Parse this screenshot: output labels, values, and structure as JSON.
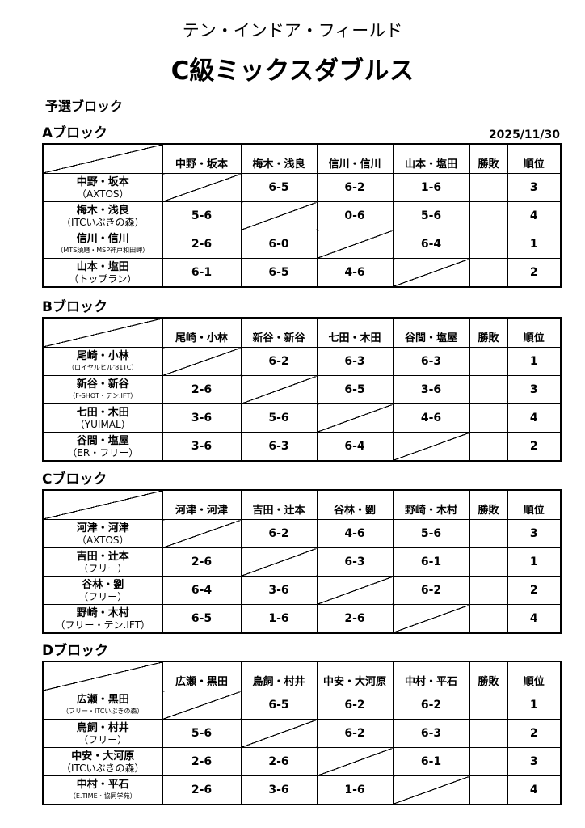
{
  "subtitle": "テン・インドア・フィールド",
  "title": "C級ミックスダブルス",
  "section": "予選ブロック",
  "date": "2025/11/30",
  "col_winloss": "勝敗",
  "col_rank": "順位",
  "blocks": [
    {
      "name": "Aブロック",
      "headers": [
        "中野・坂本",
        "梅木・浅良",
        "信川・信川",
        "山本・塩田"
      ],
      "rows": [
        {
          "name": "中野・坂本",
          "club": "（AXTOS）",
          "scores": [
            "",
            "6-5",
            "6-2",
            "1-6"
          ],
          "winloss": "",
          "rank": "3"
        },
        {
          "name": "梅木・浅良",
          "club": "（ITCいぶきの森）",
          "scores": [
            "5-6",
            "",
            "0-6",
            "5-6"
          ],
          "winloss": "",
          "rank": "4"
        },
        {
          "name": "信川・信川",
          "club": "（MTS須磨・MSP神戸和田岬）",
          "scores": [
            "2-6",
            "6-0",
            "",
            "6-4"
          ],
          "winloss": "",
          "rank": "1"
        },
        {
          "name": "山本・塩田",
          "club": "（トップラン）",
          "scores": [
            "6-1",
            "6-5",
            "4-6",
            ""
          ],
          "winloss": "",
          "rank": "2"
        }
      ]
    },
    {
      "name": "Bブロック",
      "headers": [
        "尾崎・小林",
        "新谷・新谷",
        "七田・木田",
        "谷間・塩屋"
      ],
      "rows": [
        {
          "name": "尾崎・小林",
          "club": "（ロイヤルヒル'81TC）",
          "scores": [
            "",
            "6-2",
            "6-3",
            "6-3"
          ],
          "winloss": "",
          "rank": "1"
        },
        {
          "name": "新谷・新谷",
          "club": "（F-SHOT・テン.IFT）",
          "scores": [
            "2-6",
            "",
            "6-5",
            "3-6"
          ],
          "winloss": "",
          "rank": "3"
        },
        {
          "name": "七田・木田",
          "club": "（YUIMAL）",
          "scores": [
            "3-6",
            "5-6",
            "",
            "4-6"
          ],
          "winloss": "",
          "rank": "4"
        },
        {
          "name": "谷間・塩屋",
          "club": "（ER・フリー）",
          "scores": [
            "3-6",
            "6-3",
            "6-4",
            ""
          ],
          "winloss": "",
          "rank": "2"
        }
      ]
    },
    {
      "name": "Cブロック",
      "headers": [
        "河津・河津",
        "吉田・辻本",
        "谷林・劉",
        "野崎・木村"
      ],
      "rows": [
        {
          "name": "河津・河津",
          "club": "（AXTOS）",
          "scores": [
            "",
            "6-2",
            "4-6",
            "5-6"
          ],
          "winloss": "",
          "rank": "3"
        },
        {
          "name": "吉田・辻本",
          "club": "（フリー）",
          "scores": [
            "2-6",
            "",
            "6-3",
            "6-1"
          ],
          "winloss": "",
          "rank": "1"
        },
        {
          "name": "谷林・劉",
          "club": "（フリー）",
          "scores": [
            "6-4",
            "3-6",
            "",
            "6-2"
          ],
          "winloss": "",
          "rank": "2"
        },
        {
          "name": "野崎・木村",
          "club": "（フリー・テン.IFT）",
          "scores": [
            "6-5",
            "1-6",
            "2-6",
            ""
          ],
          "winloss": "",
          "rank": "4"
        }
      ]
    },
    {
      "name": "Dブロック",
      "headers": [
        "広瀬・黒田",
        "鳥飼・村井",
        "中安・大河原",
        "中村・平石"
      ],
      "rows": [
        {
          "name": "広瀬・黒田",
          "club": "（フリー・ITCいぶきの森）",
          "scores": [
            "",
            "6-5",
            "6-2",
            "6-2"
          ],
          "winloss": "",
          "rank": "1"
        },
        {
          "name": "鳥飼・村井",
          "club": "（フリー）",
          "scores": [
            "5-6",
            "",
            "6-2",
            "6-3"
          ],
          "winloss": "",
          "rank": "2"
        },
        {
          "name": "中安・大河原",
          "club": "（ITCいぶきの森）",
          "scores": [
            "2-6",
            "2-6",
            "",
            "6-1"
          ],
          "winloss": "",
          "rank": "3"
        },
        {
          "name": "中村・平石",
          "club": "（E.TIME・協同学苑）",
          "scores": [
            "2-6",
            "3-6",
            "1-6",
            ""
          ],
          "winloss": "",
          "rank": "4"
        }
      ]
    }
  ]
}
